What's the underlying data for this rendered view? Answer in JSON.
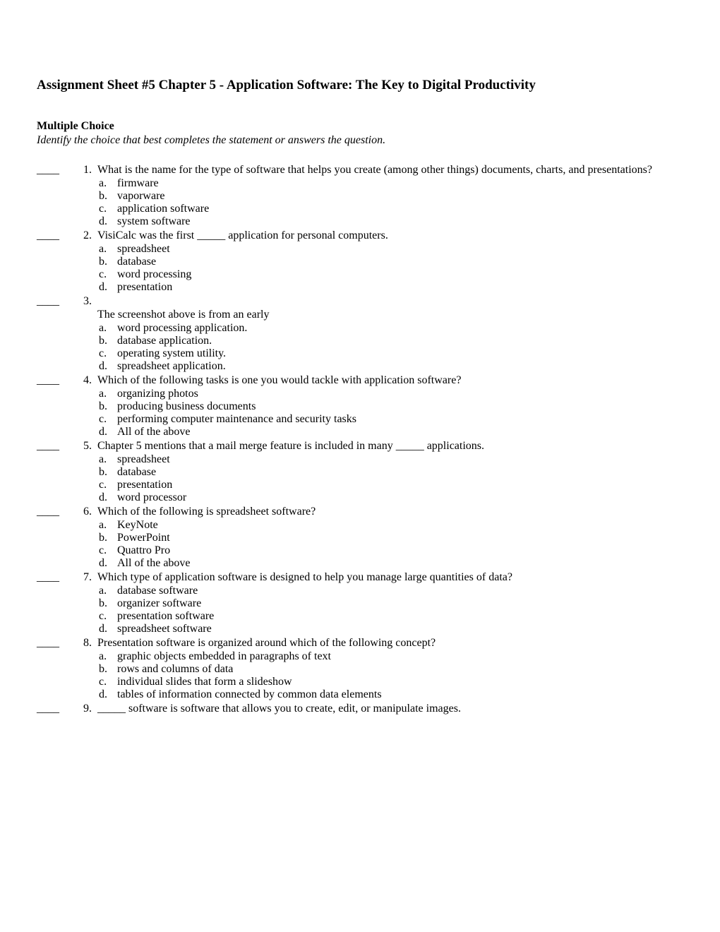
{
  "title": "Assignment Sheet #5 Chapter 5 - Application Software: The Key to Digital Productivity",
  "section_label": "Multiple Choice",
  "instructions": "Identify the choice that best completes the statement or answers the question.",
  "blank_marker": "____",
  "questions": [
    {
      "number": "1.",
      "stem": "What is the name for the type of software that helps you create (among other things) documents, charts, and presentations?",
      "options": [
        {
          "letter": "a.",
          "text": "firmware"
        },
        {
          "letter": "b.",
          "text": "vaporware"
        },
        {
          "letter": "c.",
          "text": "application software"
        },
        {
          "letter": "d.",
          "text": "system software"
        }
      ]
    },
    {
      "number": "2.",
      "stem": "VisiCalc was the first _____ application for personal computers.",
      "options": [
        {
          "letter": "a.",
          "text": "spreadsheet"
        },
        {
          "letter": "b.",
          "text": "database"
        },
        {
          "letter": "c.",
          "text": "word processing"
        },
        {
          "letter": "d.",
          "text": "presentation"
        }
      ]
    },
    {
      "number": "3.",
      "stem_pre": "",
      "stem": "The screenshot above is from an early",
      "options": [
        {
          "letter": "a.",
          "text": "word processing application."
        },
        {
          "letter": "b.",
          "text": "database application."
        },
        {
          "letter": "c.",
          "text": "operating system utility."
        },
        {
          "letter": "d.",
          "text": "spreadsheet application."
        }
      ]
    },
    {
      "number": "4.",
      "stem": "Which of the following tasks is one you would tackle with application software?",
      "options": [
        {
          "letter": "a.",
          "text": "organizing photos"
        },
        {
          "letter": "b.",
          "text": "producing business documents"
        },
        {
          "letter": "c.",
          "text": "performing computer maintenance and security tasks"
        },
        {
          "letter": "d.",
          "text": "All of the above"
        }
      ]
    },
    {
      "number": "5.",
      "stem": "Chapter 5 mentions that a mail merge feature is included in many _____ applications.",
      "options": [
        {
          "letter": "a.",
          "text": "spreadsheet"
        },
        {
          "letter": "b.",
          "text": "database"
        },
        {
          "letter": "c.",
          "text": "presentation"
        },
        {
          "letter": "d.",
          "text": "word processor"
        }
      ]
    },
    {
      "number": "6.",
      "stem": "Which of the following is spreadsheet software?",
      "options": [
        {
          "letter": "a.",
          "text": "KeyNote"
        },
        {
          "letter": "b.",
          "text": "PowerPoint"
        },
        {
          "letter": "c.",
          "text": "Quattro Pro"
        },
        {
          "letter": "d.",
          "text": "All of the above"
        }
      ]
    },
    {
      "number": "7.",
      "stem": "Which type of application software is designed to help you manage large quantities of data?",
      "options": [
        {
          "letter": "a.",
          "text": "database software"
        },
        {
          "letter": "b.",
          "text": "organizer software"
        },
        {
          "letter": "c.",
          "text": "presentation software"
        },
        {
          "letter": "d.",
          "text": "spreadsheet software"
        }
      ]
    },
    {
      "number": "8.",
      "stem": "Presentation software is organized around which of the following concept?",
      "options": [
        {
          "letter": "a.",
          "text": "graphic objects embedded in paragraphs of text"
        },
        {
          "letter": "b.",
          "text": "rows and columns of data"
        },
        {
          "letter": "c.",
          "text": "individual slides that form a slideshow"
        },
        {
          "letter": "d.",
          "text": "tables of information connected by common data elements"
        }
      ]
    },
    {
      "number": "9.",
      "stem": "_____ software is software that allows you to create, edit, or manipulate images.",
      "options": []
    }
  ]
}
